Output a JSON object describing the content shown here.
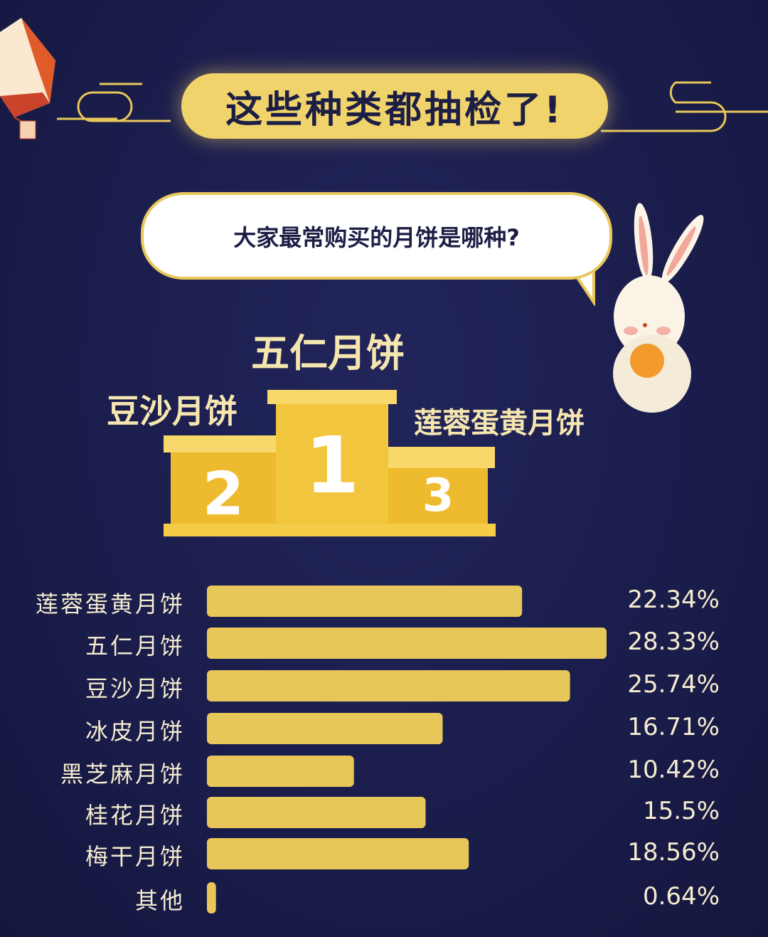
{
  "header": {
    "title": "这些种类都抽检了!"
  },
  "bubble": {
    "question": "大家最常购买的月饼是哪种?"
  },
  "podium": {
    "first": {
      "rank": "1",
      "name": "五仁月饼"
    },
    "second": {
      "rank": "2",
      "name": "豆沙月饼"
    },
    "third": {
      "rank": "3",
      "name": "莲蓉蛋黄月饼"
    }
  },
  "colors": {
    "background": "#1a1c4a",
    "bar": "#e8c75a",
    "title_pill": "#f0d36a",
    "text": "#f5ecd0"
  },
  "chart_data": {
    "type": "bar",
    "orientation": "horizontal",
    "categories": [
      "莲蓉蛋黄月饼",
      "五仁月饼",
      "豆沙月饼",
      "冰皮月饼",
      "黑芝麻月饼",
      "桂花月饼",
      "梅干月饼",
      "其他"
    ],
    "values": [
      22.34,
      28.33,
      25.74,
      16.71,
      10.42,
      15.5,
      18.56,
      0.64
    ],
    "labels": [
      "22.34%",
      "28.33%",
      "25.74%",
      "16.71%",
      "10.42%",
      "15.5%",
      "18.56%",
      "0.64%"
    ],
    "unit": "%",
    "grid": false
  }
}
